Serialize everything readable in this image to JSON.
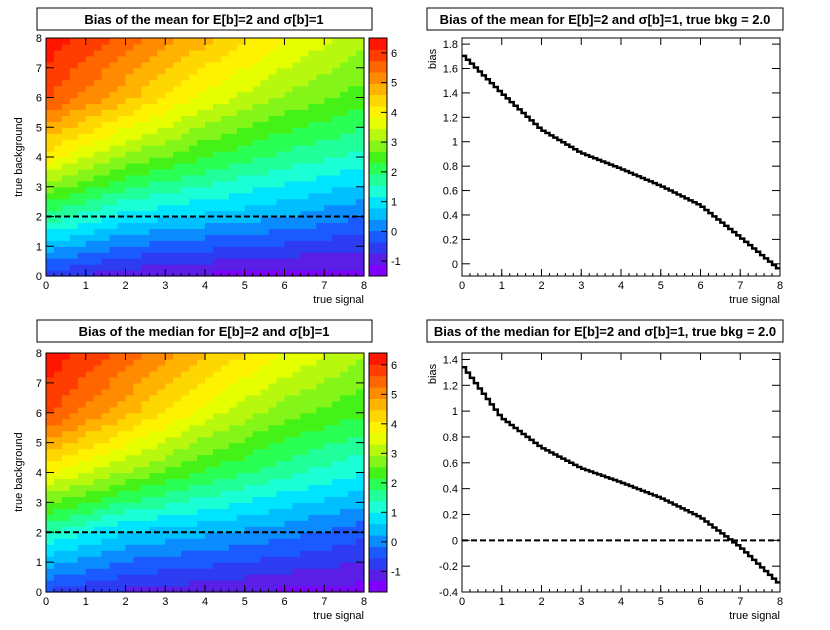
{
  "chart_data": [
    {
      "id": "mean2d",
      "type": "heatmap",
      "title": "Bias of the mean for E[b]=2 and σ[b]=1",
      "xlabel": "true signal",
      "ylabel": "true background",
      "xlim": [
        0,
        8
      ],
      "ylim": [
        0,
        8
      ],
      "xticks": [
        0,
        1,
        2,
        3,
        4,
        5,
        6,
        7,
        8
      ],
      "yticks": [
        0,
        1,
        2,
        3,
        4,
        5,
        6,
        7,
        8
      ],
      "zlim": [
        -1.5,
        6.5
      ],
      "zticks": [
        -1,
        0,
        1,
        2,
        3,
        4,
        5,
        6
      ],
      "zmodel": {
        "grid_columns_s": [
          0,
          2,
          4,
          6,
          8
        ],
        "grid_rows_b": [
          0,
          2,
          4,
          6,
          8
        ],
        "z": [
          [
            -0.6,
            -1.0,
            -1.2,
            -1.3,
            -1.3
          ],
          [
            1.8,
            1.0,
            0.7,
            0.4,
            0.0
          ],
          [
            4.0,
            3.0,
            2.3,
            1.8,
            1.4
          ],
          [
            5.8,
            4.7,
            3.7,
            3.0,
            2.5
          ],
          [
            6.4,
            5.6,
            4.7,
            3.9,
            3.2
          ]
        ]
      },
      "reference_line_y": 2,
      "grid": false
    },
    {
      "id": "mean1d",
      "type": "line",
      "title": "Bias of the mean for E[b]=2 and σ[b]=1, true bkg = 2.0",
      "xlabel": "true signal",
      "ylabel": "bias",
      "xlim": [
        0,
        8
      ],
      "ylim": [
        -0.1,
        1.85
      ],
      "xticks": [
        0,
        1,
        2,
        3,
        4,
        5,
        6,
        7,
        8
      ],
      "yticks": [
        0,
        0.2,
        0.4,
        0.6,
        0.8,
        1,
        1.2,
        1.4,
        1.6,
        1.8
      ],
      "x": [
        0,
        1,
        2,
        3,
        4,
        5,
        6,
        7,
        8
      ],
      "y": [
        1.72,
        1.4,
        1.1,
        0.91,
        0.78,
        0.64,
        0.48,
        0.22,
        -0.05
      ],
      "grid": false
    },
    {
      "id": "median2d",
      "type": "heatmap",
      "title": "Bias of the median for E[b]=2 and σ[b]=1",
      "xlabel": "true signal",
      "ylabel": "true background",
      "xlim": [
        0,
        8
      ],
      "ylim": [
        0,
        8
      ],
      "xticks": [
        0,
        1,
        2,
        3,
        4,
        5,
        6,
        7,
        8
      ],
      "yticks": [
        0,
        1,
        2,
        3,
        4,
        5,
        6,
        7,
        8
      ],
      "zlim": [
        -1.7,
        6.4
      ],
      "zticks": [
        -1,
        0,
        1,
        2,
        3,
        4,
        5,
        6
      ],
      "zmodel": {
        "grid_columns_s": [
          0,
          2,
          4,
          6,
          8
        ],
        "grid_rows_b": [
          0,
          2,
          4,
          6,
          8
        ],
        "z": [
          [
            -0.6,
            -1.0,
            -1.2,
            -1.4,
            -1.5
          ],
          [
            1.4,
            0.6,
            0.3,
            0.0,
            -0.4
          ],
          [
            3.8,
            2.9,
            2.1,
            1.5,
            1.0
          ],
          [
            5.7,
            4.6,
            3.5,
            2.7,
            2.2
          ],
          [
            6.3,
            5.5,
            4.5,
            3.7,
            3.0
          ]
        ]
      },
      "reference_line_y": 2,
      "grid": false
    },
    {
      "id": "median1d",
      "type": "line",
      "title": "Bias of the median for E[b]=2 and σ[b]=1, true bkg = 2.0",
      "xlabel": "true signal",
      "ylabel": "bias",
      "xlim": [
        0,
        8
      ],
      "ylim": [
        -0.4,
        1.45
      ],
      "xticks": [
        0,
        1,
        2,
        3,
        4,
        5,
        6,
        7,
        8
      ],
      "yticks": [
        -0.4,
        -0.2,
        0,
        0.2,
        0.4,
        0.6,
        0.8,
        1,
        1.2,
        1.4
      ],
      "x": [
        0,
        1,
        2,
        3,
        4,
        5,
        6,
        7,
        8
      ],
      "y": [
        1.36,
        0.95,
        0.72,
        0.56,
        0.45,
        0.33,
        0.18,
        -0.05,
        -0.34
      ],
      "reference_line_y": 0,
      "grid": false
    }
  ]
}
